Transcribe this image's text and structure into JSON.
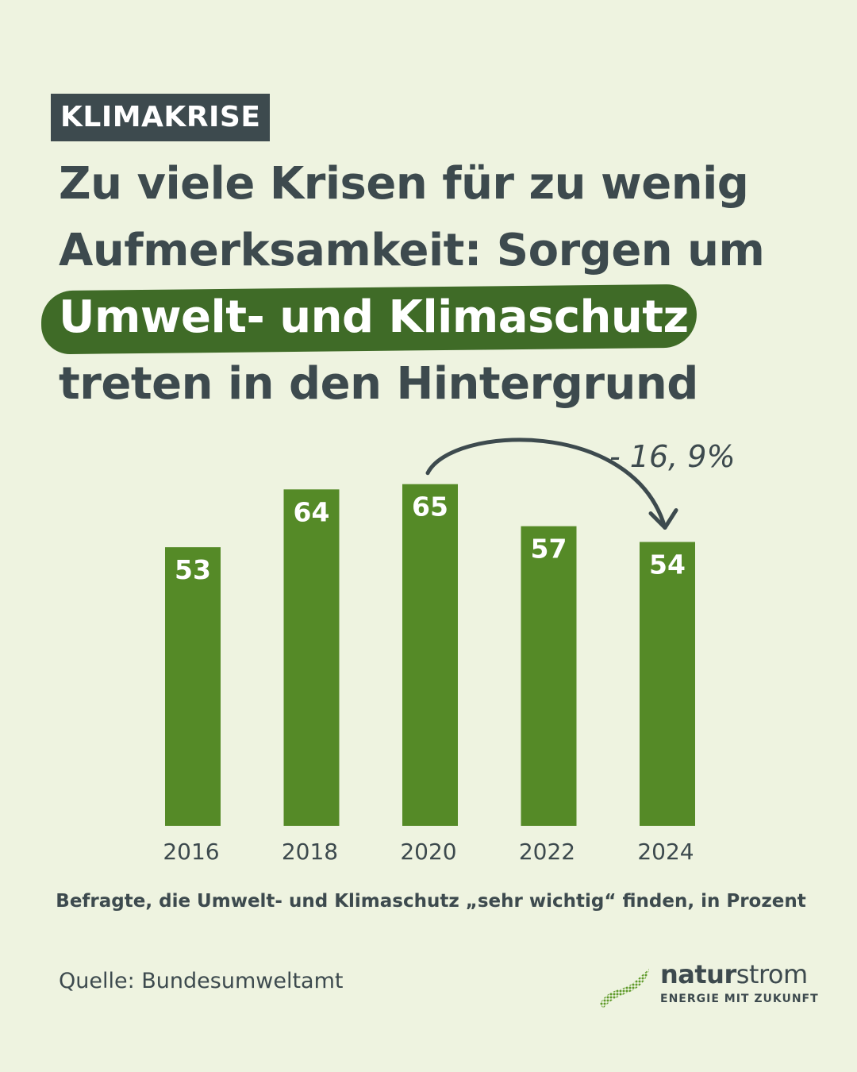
{
  "tag": "KLIMAKRISE",
  "headline": {
    "line1": "Zu viele Krisen für zu wenig",
    "line2": "Aufmerksamkeit: Sorgen um",
    "highlight": "Umwelt- und Klimaschutz",
    "line4": "treten in den Hintergrund"
  },
  "chart_data": {
    "type": "bar",
    "categories": [
      "2016",
      "2018",
      "2020",
      "2022",
      "2024"
    ],
    "values": [
      53,
      64,
      65,
      57,
      54
    ],
    "value_labels": [
      "53",
      "64",
      "65",
      "57",
      "54"
    ],
    "title": "Befragte, die Umwelt- und Klimaschutz „sehr wichtig“ finden, in Prozent",
    "annotation": {
      "text": "- 16, 9%",
      "from": "2020",
      "to": "2024"
    },
    "ylim": [
      0,
      100
    ],
    "grid": false,
    "bar_color": "#558a27"
  },
  "source": "Quelle: Bundesumweltamt",
  "logo": {
    "name_bold": "natur",
    "name_light": "strom",
    "tagline": "ENERGIE MIT ZUKUNFT"
  },
  "colors": {
    "background": "#eef3e0",
    "text": "#3d4a4e",
    "accent_dark": "#3f6b27",
    "bar": "#558a27"
  }
}
